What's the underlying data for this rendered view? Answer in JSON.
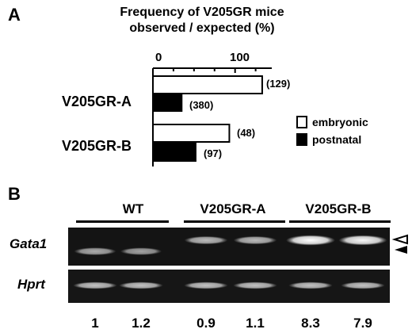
{
  "chart_data": {
    "type": "bar",
    "orientation": "horizontal",
    "panel": "A",
    "title_lines": [
      "Frequency of V205GR mice",
      "observed / expected (%)"
    ],
    "categories": [
      "V205GR-A",
      "V205GR-B"
    ],
    "series": [
      {
        "name": "embryonic",
        "values": [
          133,
          93
        ],
        "n_labels": [
          "(129)",
          "(48)"
        ],
        "color": "#ffffff"
      },
      {
        "name": "postnatal",
        "values": [
          35,
          52
        ],
        "n_labels": [
          "(380)",
          "(97)"
        ],
        "color": "#000000"
      }
    ],
    "xlim": [
      0,
      135
    ],
    "xticks": [
      0,
      100
    ],
    "xtick_labels": [
      "0",
      "100"
    ],
    "minor_ticks": [
      25,
      50,
      75,
      125
    ],
    "legend_position": "right"
  },
  "gel": {
    "panel": "B",
    "groups": [
      {
        "label": "WT",
        "lanes": 2
      },
      {
        "label": "V205GR-A",
        "lanes": 2
      },
      {
        "label": "V205GR-B",
        "lanes": 2
      }
    ],
    "rows": [
      {
        "gene": "Gata1",
        "band_intensities": [
          0.45,
          0.4,
          0.55,
          0.55,
          1.0,
          0.95
        ],
        "band_level": [
          "lower",
          "lower",
          "upper",
          "upper",
          "upper",
          "upper"
        ]
      },
      {
        "gene": "Hprt",
        "band_intensities": [
          0.6,
          0.6,
          0.6,
          0.6,
          0.6,
          0.6
        ],
        "band_level": [
          "same",
          "same",
          "same",
          "same",
          "same",
          "same"
        ]
      }
    ],
    "arrowheads": [
      "open-arrowhead",
      "filled-arrowhead"
    ],
    "quantification": [
      "1",
      "1.2",
      "0.9",
      "1.1",
      "8.3",
      "7.9"
    ]
  }
}
